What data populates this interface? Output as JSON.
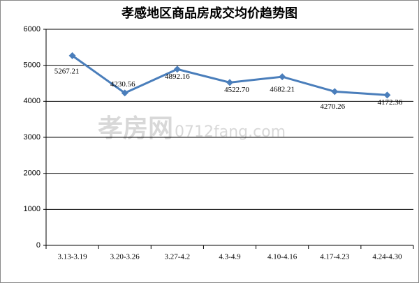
{
  "chart_data": {
    "type": "line",
    "title": "孝感地区商品房成交均价趋势图",
    "watermark": [
      "孝房网",
      "0712fang.com"
    ],
    "categories": [
      "3.13-3.19",
      "3.20-3.26",
      "3.27-4.2",
      "4.3-4.9",
      "4.10-4.16",
      "4.17-4.23",
      "4.24-4.30"
    ],
    "values": [
      5267.21,
      4230.56,
      4892.16,
      4522.7,
      4682.21,
      4270.26,
      4172.36
    ],
    "value_labels": [
      "5267.21",
      "4230.56",
      "4892.16",
      "4522.70",
      "4682.21",
      "4270.26",
      "4172.36"
    ],
    "color": "#4a7ebb",
    "ylim": [
      0,
      6000
    ],
    "yticks": [
      0,
      1000,
      2000,
      3000,
      4000,
      5000,
      6000
    ],
    "grid": true
  }
}
